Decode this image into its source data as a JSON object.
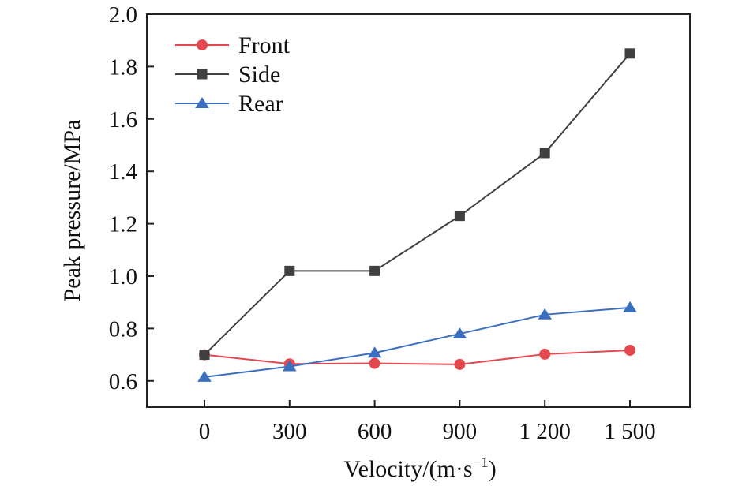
{
  "chart_data": {
    "type": "line",
    "categories": [
      "0",
      "300",
      "600",
      "900",
      "1 200",
      "1 500"
    ],
    "series": [
      {
        "name": "Front",
        "marker": "circle",
        "color": "#e5474f",
        "values": [
          0.7,
          0.665,
          0.667,
          0.663,
          0.702,
          0.717
        ]
      },
      {
        "name": "Side",
        "marker": "square",
        "color": "#404040",
        "values": [
          0.7,
          1.02,
          1.02,
          1.23,
          1.47,
          1.85
        ]
      },
      {
        "name": "Rear",
        "marker": "triangle",
        "color": "#3a6fbf",
        "values": [
          0.615,
          0.655,
          0.707,
          0.78,
          0.853,
          0.88
        ]
      }
    ],
    "xlabel": "Velocity/(m·s",
    "xlabel_superscript": "−1",
    "xlabel_suffix": ")",
    "ylabel": "Peak pressure/MPa",
    "ylim": [
      0.5,
      2.0
    ],
    "yticks": [
      "0.6",
      "0.8",
      "1.0",
      "1.2",
      "1.4",
      "1.6",
      "1.8",
      "2.0"
    ],
    "ytick_values": [
      0.6,
      0.8,
      1.0,
      1.2,
      1.4,
      1.6,
      1.8,
      2.0
    ],
    "grid": false,
    "legend_position": "top-left"
  }
}
